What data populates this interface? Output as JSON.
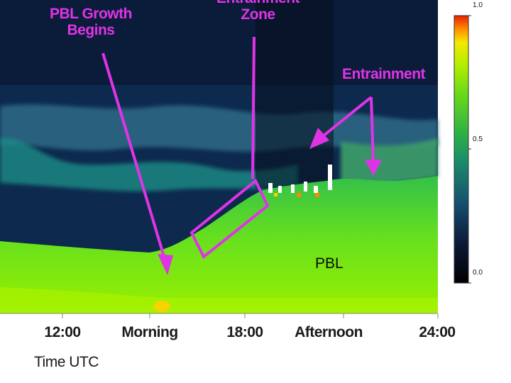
{
  "chart_data": {
    "type": "heatmap",
    "title": "",
    "xlabel": "Time UTC",
    "ylabel": "",
    "x_ticks": [
      "12:00",
      "Morning",
      "18:00",
      "Afternoon",
      "24:00"
    ],
    "colorbar": {
      "min": 0.0,
      "max": 1.0,
      "ticks": [
        "1.0",
        "0.5",
        "0.0"
      ]
    },
    "regions": [
      {
        "label": "PBL"
      }
    ],
    "annotations": [
      {
        "label_lines": [
          "PBL Growth",
          "Begins"
        ]
      },
      {
        "label_lines": [
          "Entrainment",
          "Zone"
        ]
      },
      {
        "label_lines": [
          "Entrainment"
        ]
      }
    ]
  }
}
